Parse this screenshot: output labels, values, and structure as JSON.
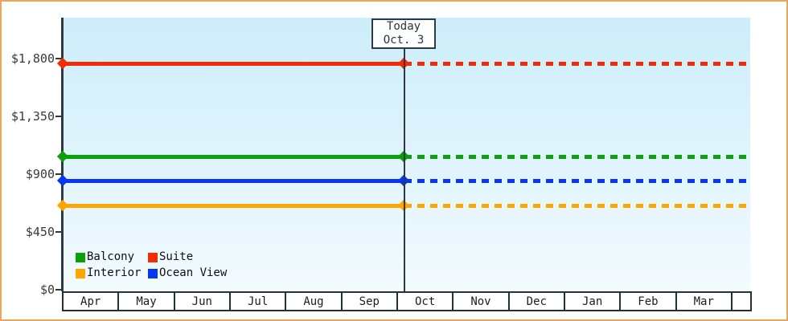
{
  "window": {
    "border_color": "#eaa75c",
    "background_color": "#ffffff",
    "plot_gradient_top": "#cdeefb",
    "plot_gradient_bottom": "#f3fbfe",
    "axis_color": "#2e3a40"
  },
  "chart_data": {
    "type": "line",
    "title": "",
    "xlabel": "",
    "ylabel": "",
    "x_categories": [
      "Apr",
      "May",
      "Jun",
      "Jul",
      "Aug",
      "Sep",
      "Oct",
      "Nov",
      "Dec",
      "Jan",
      "Feb",
      "Mar"
    ],
    "y_ticks": [
      "$1,800",
      "$1,350",
      "$900",
      "$450",
      "$0"
    ],
    "y_tick_values": [
      1800,
      1350,
      900,
      450,
      0
    ],
    "ylim": [
      0,
      2100
    ],
    "grid": false,
    "legend_position": "bottom-left-inside",
    "annotation": {
      "label_line1": "Today",
      "label_line2": "Oct. 3",
      "marker": "vertical-line-over-october"
    },
    "line_style": {
      "before_today": "solid",
      "after_today": "dashed",
      "endpoint_markers": "diamond"
    },
    "series": [
      {
        "name": "Balcony",
        "color": "#0aa00a",
        "value": 1035
      },
      {
        "name": "Suite",
        "color": "#f42b05",
        "value": 1760
      },
      {
        "name": "Interior",
        "color": "#ffa500",
        "value": 655
      },
      {
        "name": "Ocean View",
        "color": "#0536f0",
        "value": 850
      }
    ]
  },
  "legend": {
    "items": [
      {
        "label": "Balcony",
        "color": "#0aa00a"
      },
      {
        "label": "Suite",
        "color": "#f42b05"
      },
      {
        "label": "Interior",
        "color": "#ffa500"
      },
      {
        "label": "Ocean View",
        "color": "#0536f0"
      }
    ]
  },
  "today_box": {
    "line1": "Today",
    "line2": "Oct. 3"
  }
}
